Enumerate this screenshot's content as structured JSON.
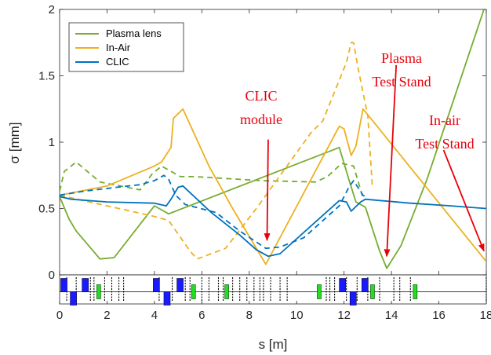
{
  "chart_data": {
    "type": "line",
    "xlabel": "s [m]",
    "ylabel": "σ [mm]",
    "xlim": [
      0,
      18
    ],
    "ylim": [
      0,
      2
    ],
    "xticks": [
      "0",
      "2",
      "4",
      "6",
      "8",
      "10",
      "12",
      "14",
      "16",
      "18"
    ],
    "yticks": [
      "0",
      "0.5",
      "1",
      "1.5",
      "2"
    ],
    "grid": false,
    "legend_position": "top-left",
    "legend": [
      "Plasma lens",
      "In-Air",
      "CLIC"
    ],
    "colors": {
      "plasma": "#77ac30",
      "inair": "#edb120",
      "clic": "#0072bd",
      "annotation": "#e8000b",
      "dipole": "#1a1aff",
      "quad": "#22dd22"
    },
    "series": [
      {
        "name": "Plasma lens",
        "style": "solid",
        "x": [
          0,
          0.4,
          0.7,
          1.7,
          2.3,
          4.0,
          4.4,
          4.6,
          11.8,
          12.2,
          12.5,
          12.9,
          13.5,
          13.8,
          14.4,
          15.5,
          17.9
        ],
        "y": [
          0.59,
          0.42,
          0.33,
          0.12,
          0.13,
          0.52,
          0.48,
          0.46,
          0.96,
          0.72,
          0.55,
          0.51,
          0.18,
          0.05,
          0.22,
          0.72,
          2.0
        ]
      },
      {
        "name": "Plasma lens",
        "style": "dashed",
        "x": [
          0,
          0.2,
          0.7,
          1.7,
          3.4,
          3.9,
          4.3,
          4.9,
          5.1,
          5.7,
          8.5,
          10.8,
          11.3,
          11.9,
          12.4,
          12.8
        ],
        "y": [
          0.63,
          0.78,
          0.85,
          0.7,
          0.64,
          0.76,
          0.82,
          0.76,
          0.74,
          0.74,
          0.71,
          0.7,
          0.74,
          0.84,
          0.82,
          0.58
        ]
      },
      {
        "name": "In-Air",
        "style": "solid",
        "x": [
          0,
          2.0,
          4.0,
          4.3,
          4.7,
          4.8,
          5.2,
          6.3,
          7.3,
          8.7,
          11.8,
          12.0,
          12.3,
          12.5,
          12.8,
          13.3,
          18.0
        ],
        "y": [
          0.6,
          0.67,
          0.82,
          0.85,
          0.96,
          1.18,
          1.25,
          0.82,
          0.5,
          0.08,
          1.12,
          1.1,
          0.9,
          0.97,
          1.25,
          1.14,
          0.1
        ]
      },
      {
        "name": "In-Air",
        "style": "dashed",
        "x": [
          0,
          2.0,
          4.0,
          4.6,
          5.5,
          5.8,
          7.0,
          8.3,
          10.6,
          11.1,
          12.1,
          12.3,
          12.4,
          12.6,
          13.0,
          13.2
        ],
        "y": [
          0.6,
          0.52,
          0.44,
          0.41,
          0.18,
          0.12,
          0.2,
          0.5,
          1.07,
          1.16,
          1.6,
          1.75,
          1.75,
          1.55,
          1.2,
          0.65
        ]
      },
      {
        "name": "CLIC",
        "style": "solid",
        "x": [
          0,
          0.5,
          2.0,
          4.0,
          4.5,
          4.7,
          5.0,
          5.2,
          6.4,
          7.6,
          8.3,
          8.8,
          9.3,
          11.8,
          12.1,
          12.3,
          12.7,
          12.9,
          14.8,
          16.5,
          18.0
        ],
        "y": [
          0.59,
          0.57,
          0.55,
          0.54,
          0.52,
          0.57,
          0.66,
          0.67,
          0.47,
          0.3,
          0.19,
          0.14,
          0.16,
          0.56,
          0.55,
          0.48,
          0.55,
          0.57,
          0.54,
          0.52,
          0.5
        ]
      },
      {
        "name": "CLIC",
        "style": "dashed",
        "x": [
          0,
          1.0,
          2.4,
          3.4,
          4.0,
          4.4,
          4.6,
          4.9,
          5.3,
          6.6,
          7.6,
          8.7,
          9.3,
          10.3,
          11.8,
          12.2,
          12.4,
          12.8,
          13.0
        ],
        "y": [
          0.6,
          0.63,
          0.66,
          0.68,
          0.71,
          0.75,
          0.72,
          0.6,
          0.53,
          0.47,
          0.33,
          0.2,
          0.21,
          0.28,
          0.52,
          0.66,
          0.71,
          0.6,
          0.58
        ]
      }
    ],
    "annotations": [
      {
        "lines": [
          "CLIC",
          "module"
        ],
        "arrow_from": [
          8.8,
          1.02
        ],
        "arrow_to": [
          8.75,
          0.26
        ]
      },
      {
        "lines": [
          "Plasma",
          "Test Stand"
        ],
        "arrow_from": [
          14.2,
          1.58
        ],
        "arrow_to": [
          13.8,
          0.14
        ]
      },
      {
        "lines": [
          "In-air",
          "Test Stand"
        ],
        "arrow_from": [
          16.2,
          0.94
        ],
        "arrow_to": [
          17.9,
          0.18
        ]
      }
    ],
    "lattice": {
      "dipoles": [
        {
          "s": 0.05,
          "pos": "up"
        },
        {
          "s": 0.45,
          "pos": "down"
        },
        {
          "s": 0.95,
          "pos": "up"
        },
        {
          "s": 3.95,
          "pos": "up"
        },
        {
          "s": 4.4,
          "pos": "down"
        },
        {
          "s": 4.95,
          "pos": "up"
        },
        {
          "s": 11.8,
          "pos": "up"
        },
        {
          "s": 12.25,
          "pos": "down"
        },
        {
          "s": 12.75,
          "pos": "up"
        }
      ],
      "quads": [
        1.65,
        5.65,
        7.05,
        10.95,
        13.2,
        15.0
      ],
      "markers": [
        0.3,
        0.7,
        1.3,
        1.45,
        1.9,
        2.2,
        2.5,
        2.7,
        4.2,
        4.75,
        5.3,
        5.5,
        6.0,
        6.3,
        6.7,
        6.9,
        7.3,
        7.6,
        7.9,
        8.2,
        8.45,
        8.6,
        8.9,
        9.3,
        9.6,
        11.25,
        11.4,
        11.6,
        12.1,
        12.55,
        13.0,
        13.5,
        14.1,
        14.35,
        14.8,
        18.0
      ]
    }
  }
}
